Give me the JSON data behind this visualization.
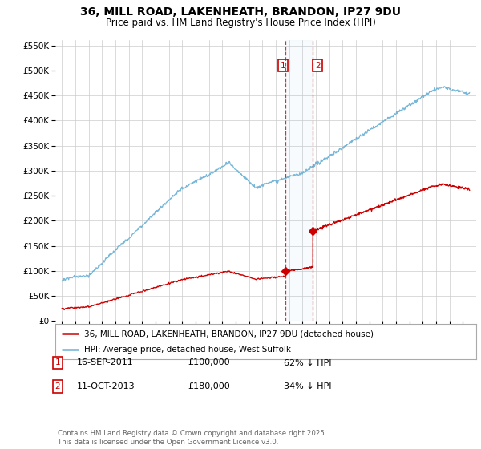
{
  "title": "36, MILL ROAD, LAKENHEATH, BRANDON, IP27 9DU",
  "subtitle": "Price paid vs. HM Land Registry's House Price Index (HPI)",
  "yticks": [
    0,
    50000,
    100000,
    150000,
    200000,
    250000,
    300000,
    350000,
    400000,
    450000,
    500000,
    550000
  ],
  "ytick_labels": [
    "£0",
    "£50K",
    "£100K",
    "£150K",
    "£200K",
    "£250K",
    "£300K",
    "£350K",
    "£400K",
    "£450K",
    "£500K",
    "£550K"
  ],
  "hpi_color": "#6ab0d4",
  "price_color": "#cc0000",
  "marker1_date": 2011.71,
  "marker1_price": 100000,
  "marker2_date": 2013.78,
  "marker2_price": 180000,
  "legend_line1": "36, MILL ROAD, LAKENHEATH, BRANDON, IP27 9DU (detached house)",
  "legend_line2": "HPI: Average price, detached house, West Suffolk",
  "annotation1_date": "16-SEP-2011",
  "annotation1_price": "£100,000",
  "annotation1_hpi": "62% ↓ HPI",
  "annotation2_date": "11-OCT-2013",
  "annotation2_price": "£180,000",
  "annotation2_hpi": "34% ↓ HPI",
  "footer": "Contains HM Land Registry data © Crown copyright and database right 2025.\nThis data is licensed under the Open Government Licence v3.0.",
  "background_color": "#ffffff",
  "grid_color": "#cccccc",
  "xmin": 1994.5,
  "xmax": 2026.0,
  "ymin": 0,
  "ymax": 560000
}
